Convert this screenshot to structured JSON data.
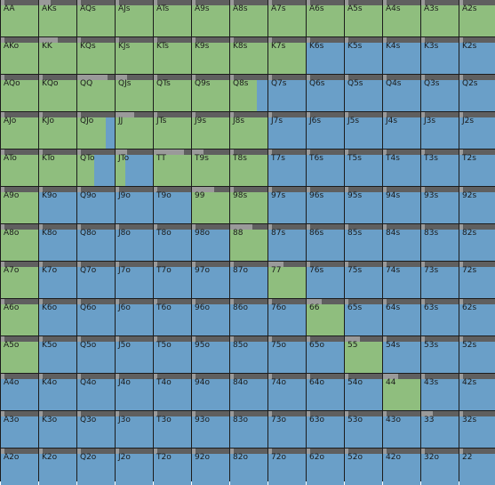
{
  "colors": {
    "raise": "#8fbe7e",
    "call": "#6a9fc8",
    "bar_bg": "#5f5f5f",
    "bar_fill": "#9a9a9a",
    "grid_line": "#1c1c1c"
  },
  "rows": [
    [
      [
        "AA",
        1,
        0.1
      ],
      [
        "AKs",
        1,
        0.3
      ],
      [
        "AQs",
        1,
        0.1
      ],
      [
        "AJs",
        1,
        0.1
      ],
      [
        "ATs",
        1,
        0.1
      ],
      [
        "A9s",
        1,
        0.1
      ],
      [
        "A8s",
        1,
        0.1
      ],
      [
        "A7s",
        1,
        0.1
      ],
      [
        "A6s",
        1,
        0.1
      ],
      [
        "A5s",
        1,
        0.1
      ],
      [
        "A4s",
        1,
        0.1
      ],
      [
        "A3s",
        1,
        0.1
      ],
      [
        "A2s",
        1,
        0.1
      ]
    ],
    [
      [
        "AKo",
        1,
        0.1
      ],
      [
        "KK",
        1,
        0.5
      ],
      [
        "KQs",
        1,
        0.1
      ],
      [
        "KJs",
        1,
        0.1
      ],
      [
        "KTs",
        1,
        0.1
      ],
      [
        "K9s",
        1,
        0.1
      ],
      [
        "K8s",
        1,
        0.1
      ],
      [
        "K7s",
        1,
        0.1
      ],
      [
        "K6s",
        0,
        0.1
      ],
      [
        "K5s",
        0,
        0.1
      ],
      [
        "K4s",
        0,
        0.1
      ],
      [
        "K3s",
        0,
        0.1
      ],
      [
        "K2s",
        0,
        0.1
      ]
    ],
    [
      [
        "AQo",
        1,
        0.1
      ],
      [
        "KQo",
        1,
        0.1
      ],
      [
        "QQ",
        1,
        0.8
      ],
      [
        "QJs",
        1,
        0.3
      ],
      [
        "QTs",
        1,
        0.1
      ],
      [
        "Q9s",
        1,
        0.1
      ],
      [
        "Q8s",
        0.72,
        0.1
      ],
      [
        "Q7s",
        0,
        0.1
      ],
      [
        "Q6s",
        0,
        0.1
      ],
      [
        "Q5s",
        0,
        0.1
      ],
      [
        "Q4s",
        0,
        0.1
      ],
      [
        "Q3s",
        0,
        0.1
      ],
      [
        "Q2s",
        0,
        0.1
      ]
    ],
    [
      [
        "AJo",
        1,
        0.1
      ],
      [
        "KJo",
        1,
        0.1
      ],
      [
        "QJo",
        0.75,
        0.1
      ],
      [
        "JJ",
        1,
        0.5
      ],
      [
        "JTs",
        1,
        0.1
      ],
      [
        "J9s",
        1,
        0.1
      ],
      [
        "J8s",
        1,
        0.1
      ],
      [
        "J7s",
        0,
        0.1
      ],
      [
        "J6s",
        0,
        0.1
      ],
      [
        "J5s",
        0,
        0.1
      ],
      [
        "J4s",
        0,
        0.1
      ],
      [
        "J3s",
        0,
        0.1
      ],
      [
        "J2s",
        0,
        0.1
      ]
    ],
    [
      [
        "ATo",
        1,
        0.1
      ],
      [
        "KTo",
        1,
        0.1
      ],
      [
        "QTo",
        0.45,
        0.1
      ],
      [
        "JTo",
        0.25,
        0.3
      ],
      [
        "TT",
        1,
        0.8
      ],
      [
        "T9s",
        1,
        0.3
      ],
      [
        "T8s",
        1,
        0.1
      ],
      [
        "T7s",
        0,
        0.1
      ],
      [
        "T6s",
        0,
        0.1
      ],
      [
        "T5s",
        0,
        0.1
      ],
      [
        "T4s",
        0,
        0.1
      ],
      [
        "T3s",
        0,
        0.1
      ],
      [
        "T2s",
        0,
        0.1
      ]
    ],
    [
      [
        "A9o",
        1,
        0.1
      ],
      [
        "K9o",
        0,
        0.1
      ],
      [
        "Q9o",
        0,
        0.1
      ],
      [
        "J9o",
        0,
        0.1
      ],
      [
        "T9o",
        0,
        0.1
      ],
      [
        "99",
        1,
        0.6
      ],
      [
        "98s",
        1,
        0.1
      ],
      [
        "97s",
        0,
        0.1
      ],
      [
        "96s",
        0,
        0.1
      ],
      [
        "95s",
        0,
        0.1
      ],
      [
        "94s",
        0,
        0.1
      ],
      [
        "93s",
        0,
        0.1
      ],
      [
        "92s",
        0,
        0.1
      ]
    ],
    [
      [
        "A8o",
        1,
        0.1
      ],
      [
        "K8o",
        0,
        0.1
      ],
      [
        "Q8o",
        0,
        0.1
      ],
      [
        "J8o",
        0,
        0.1
      ],
      [
        "T8o",
        0,
        0.1
      ],
      [
        "98o",
        0,
        0.1
      ],
      [
        "88",
        1,
        0.6
      ],
      [
        "87s",
        0,
        0.1
      ],
      [
        "86s",
        0,
        0.1
      ],
      [
        "85s",
        0,
        0.1
      ],
      [
        "84s",
        0,
        0.1
      ],
      [
        "83s",
        0,
        0.1
      ],
      [
        "82s",
        0,
        0.1
      ]
    ],
    [
      [
        "A7o",
        1,
        0.1
      ],
      [
        "K7o",
        0,
        0.1
      ],
      [
        "Q7o",
        0,
        0.1
      ],
      [
        "J7o",
        0,
        0.1
      ],
      [
        "T7o",
        0,
        0.1
      ],
      [
        "97o",
        0,
        0.1
      ],
      [
        "87o",
        0,
        0.1
      ],
      [
        "77",
        1,
        0.4
      ],
      [
        "76s",
        0,
        0.1
      ],
      [
        "75s",
        0,
        0.1
      ],
      [
        "74s",
        0,
        0.1
      ],
      [
        "73s",
        0,
        0.1
      ],
      [
        "72s",
        0,
        0.1
      ]
    ],
    [
      [
        "A6o",
        1,
        0.1
      ],
      [
        "K6o",
        0,
        0.1
      ],
      [
        "Q6o",
        0,
        0.1
      ],
      [
        "J6o",
        0,
        0.1
      ],
      [
        "T6o",
        0,
        0.1
      ],
      [
        "96o",
        0,
        0.1
      ],
      [
        "86o",
        0,
        0.1
      ],
      [
        "76o",
        0,
        0.1
      ],
      [
        "66",
        1,
        0.4
      ],
      [
        "65s",
        0,
        0.1
      ],
      [
        "64s",
        0,
        0.1
      ],
      [
        "63s",
        0,
        0.1
      ],
      [
        "62s",
        0,
        0.1
      ]
    ],
    [
      [
        "A5o",
        1,
        0.1
      ],
      [
        "K5o",
        0,
        0.1
      ],
      [
        "Q5o",
        0,
        0.1
      ],
      [
        "J5o",
        0,
        0.1
      ],
      [
        "T5o",
        0,
        0.1
      ],
      [
        "95o",
        0,
        0.1
      ],
      [
        "85o",
        0,
        0.1
      ],
      [
        "75o",
        0,
        0.1
      ],
      [
        "65o",
        0,
        0.1
      ],
      [
        "55",
        1,
        0.4
      ],
      [
        "54s",
        0,
        0.1
      ],
      [
        "53s",
        0,
        0.1
      ],
      [
        "52s",
        0,
        0.1
      ]
    ],
    [
      [
        "A4o",
        0,
        0.1
      ],
      [
        "K4o",
        0,
        0.1
      ],
      [
        "Q4o",
        0,
        0.1
      ],
      [
        "J4o",
        0,
        0.1
      ],
      [
        "T4o",
        0,
        0.1
      ],
      [
        "94o",
        0,
        0.1
      ],
      [
        "84o",
        0,
        0.1
      ],
      [
        "74o",
        0,
        0.1
      ],
      [
        "64o",
        0,
        0.1
      ],
      [
        "54o",
        0,
        0.1
      ],
      [
        "44",
        1,
        0.4
      ],
      [
        "43s",
        0,
        0.1
      ],
      [
        "42s",
        0,
        0.1
      ]
    ],
    [
      [
        "A3o",
        0,
        0.1
      ],
      [
        "K3o",
        0,
        0.1
      ],
      [
        "Q3o",
        0,
        0.1
      ],
      [
        "J3o",
        0,
        0.1
      ],
      [
        "T3o",
        0,
        0.1
      ],
      [
        "93o",
        0,
        0.1
      ],
      [
        "83o",
        0,
        0.1
      ],
      [
        "73o",
        0,
        0.1
      ],
      [
        "63o",
        0,
        0.1
      ],
      [
        "53o",
        0,
        0.1
      ],
      [
        "43o",
        0,
        0.1
      ],
      [
        "33",
        0,
        0.3
      ],
      [
        "32s",
        0,
        0.1
      ]
    ],
    [
      [
        "A2o",
        0,
        0.1
      ],
      [
        "K2o",
        0,
        0.1
      ],
      [
        "Q2o",
        0,
        0.1
      ],
      [
        "J2o",
        0,
        0.1
      ],
      [
        "T2o",
        0,
        0.1
      ],
      [
        "92o",
        0,
        0.1
      ],
      [
        "82o",
        0,
        0.1
      ],
      [
        "72o",
        0,
        0.1
      ],
      [
        "62o",
        0,
        0.1
      ],
      [
        "52o",
        0,
        0.1
      ],
      [
        "42o",
        0,
        0.1
      ],
      [
        "32o",
        0,
        0.1
      ],
      [
        "22",
        0,
        0.1
      ]
    ]
  ]
}
